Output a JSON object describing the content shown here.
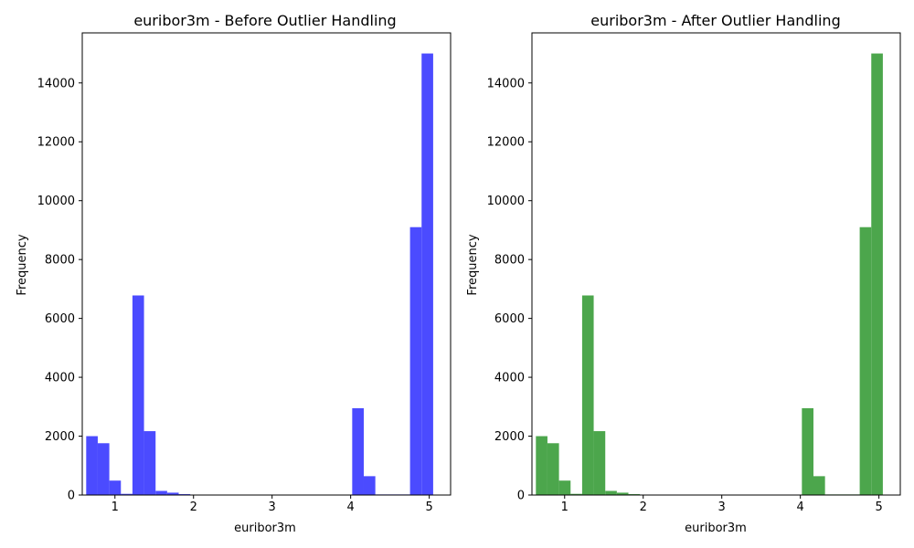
{
  "chart_data": [
    {
      "type": "bar",
      "title": "euribor3m - Before Outlier Handling",
      "xlabel": "euribor3m",
      "ylabel": "Frequency",
      "color": "#4b4bff",
      "xlim": [
        0.584,
        5.272
      ],
      "ylim": [
        0,
        15700
      ],
      "xticks": [
        1,
        2,
        3,
        4,
        5
      ],
      "yticks": [
        0,
        2000,
        4000,
        6000,
        8000,
        10000,
        12000,
        14000
      ],
      "bin_edges": [
        0.634,
        0.7812,
        0.9284,
        1.0756,
        1.2228,
        1.37,
        1.5172,
        1.6644,
        1.8116,
        1.9588,
        2.106,
        2.2532,
        2.4004,
        2.5476,
        2.6948,
        2.842,
        2.9892,
        3.1364,
        3.2836,
        3.4308,
        3.578,
        3.7252,
        3.8724,
        4.0196,
        4.1668,
        4.314,
        4.4612,
        4.6084,
        4.7556,
        4.9028,
        5.05
      ],
      "values": [
        2000,
        1760,
        490,
        40,
        6780,
        2170,
        140,
        80,
        30,
        5,
        0,
        0,
        0,
        0,
        0,
        0,
        0,
        0,
        0,
        0,
        0,
        0,
        0,
        2950,
        640,
        20,
        20,
        20,
        9100,
        15000
      ]
    },
    {
      "type": "bar",
      "title": "euribor3m - After Outlier Handling",
      "xlabel": "euribor3m",
      "ylabel": "Frequency",
      "color": "#4ca64c",
      "xlim": [
        0.584,
        5.272
      ],
      "ylim": [
        0,
        15700
      ],
      "xticks": [
        1,
        2,
        3,
        4,
        5
      ],
      "yticks": [
        0,
        2000,
        4000,
        6000,
        8000,
        10000,
        12000,
        14000
      ],
      "bin_edges": [
        0.634,
        0.7812,
        0.9284,
        1.0756,
        1.2228,
        1.37,
        1.5172,
        1.6644,
        1.8116,
        1.9588,
        2.106,
        2.2532,
        2.4004,
        2.5476,
        2.6948,
        2.842,
        2.9892,
        3.1364,
        3.2836,
        3.4308,
        3.578,
        3.7252,
        3.8724,
        4.0196,
        4.1668,
        4.314,
        4.4612,
        4.6084,
        4.7556,
        4.9028,
        5.05
      ],
      "values": [
        2000,
        1760,
        490,
        40,
        6780,
        2170,
        140,
        80,
        30,
        5,
        0,
        0,
        0,
        0,
        0,
        0,
        0,
        0,
        0,
        0,
        0,
        0,
        0,
        2950,
        640,
        20,
        20,
        20,
        9100,
        15000
      ]
    }
  ]
}
